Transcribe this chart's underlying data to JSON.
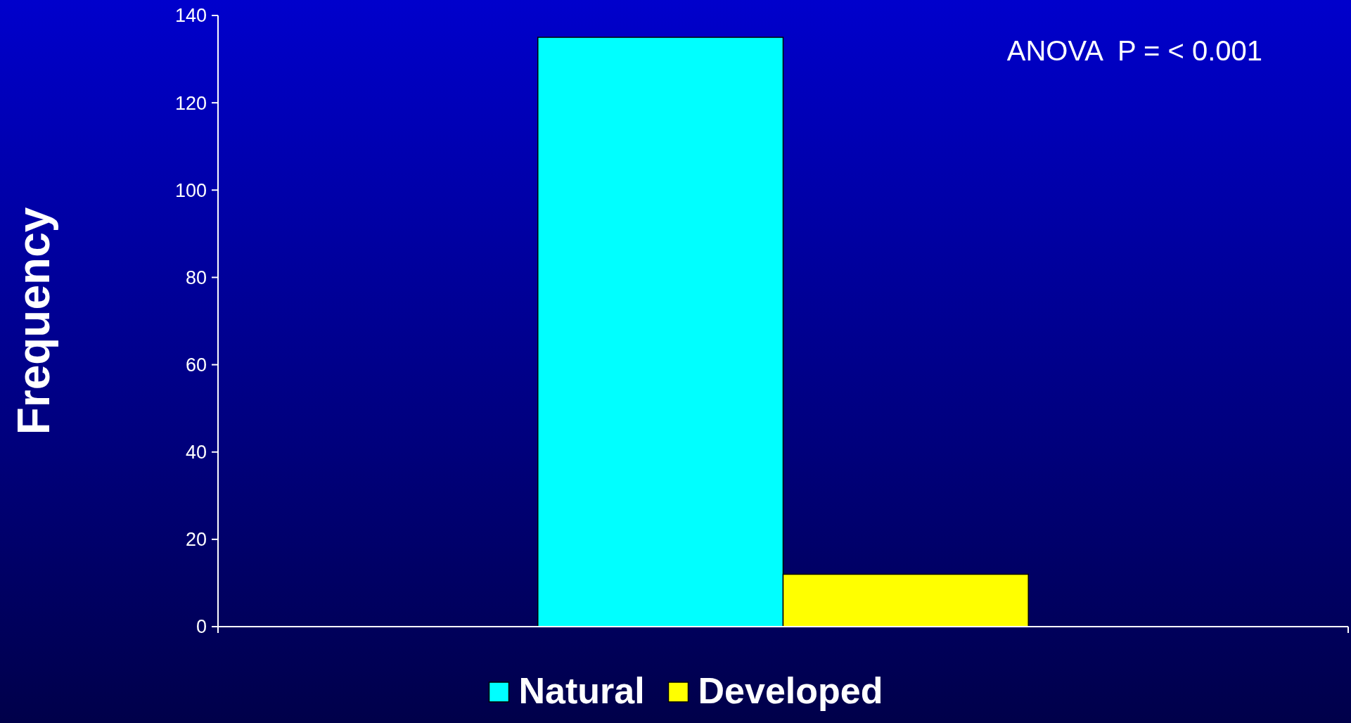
{
  "chart_data": {
    "type": "bar",
    "ylabel": "Frequency",
    "categories": [
      null
    ],
    "series": [
      {
        "name": "Natural",
        "color": "#00ffff",
        "values": [
          135
        ]
      },
      {
        "name": "Developed",
        "color": "#ffff00",
        "values": [
          12
        ]
      }
    ],
    "ylim": [
      0,
      140
    ],
    "yticks": [
      0,
      20,
      40,
      60,
      80,
      100,
      120,
      140
    ],
    "grid": false,
    "legend": "bottom",
    "annotations": [
      "ANOVA  P = < 0.001"
    ]
  }
}
